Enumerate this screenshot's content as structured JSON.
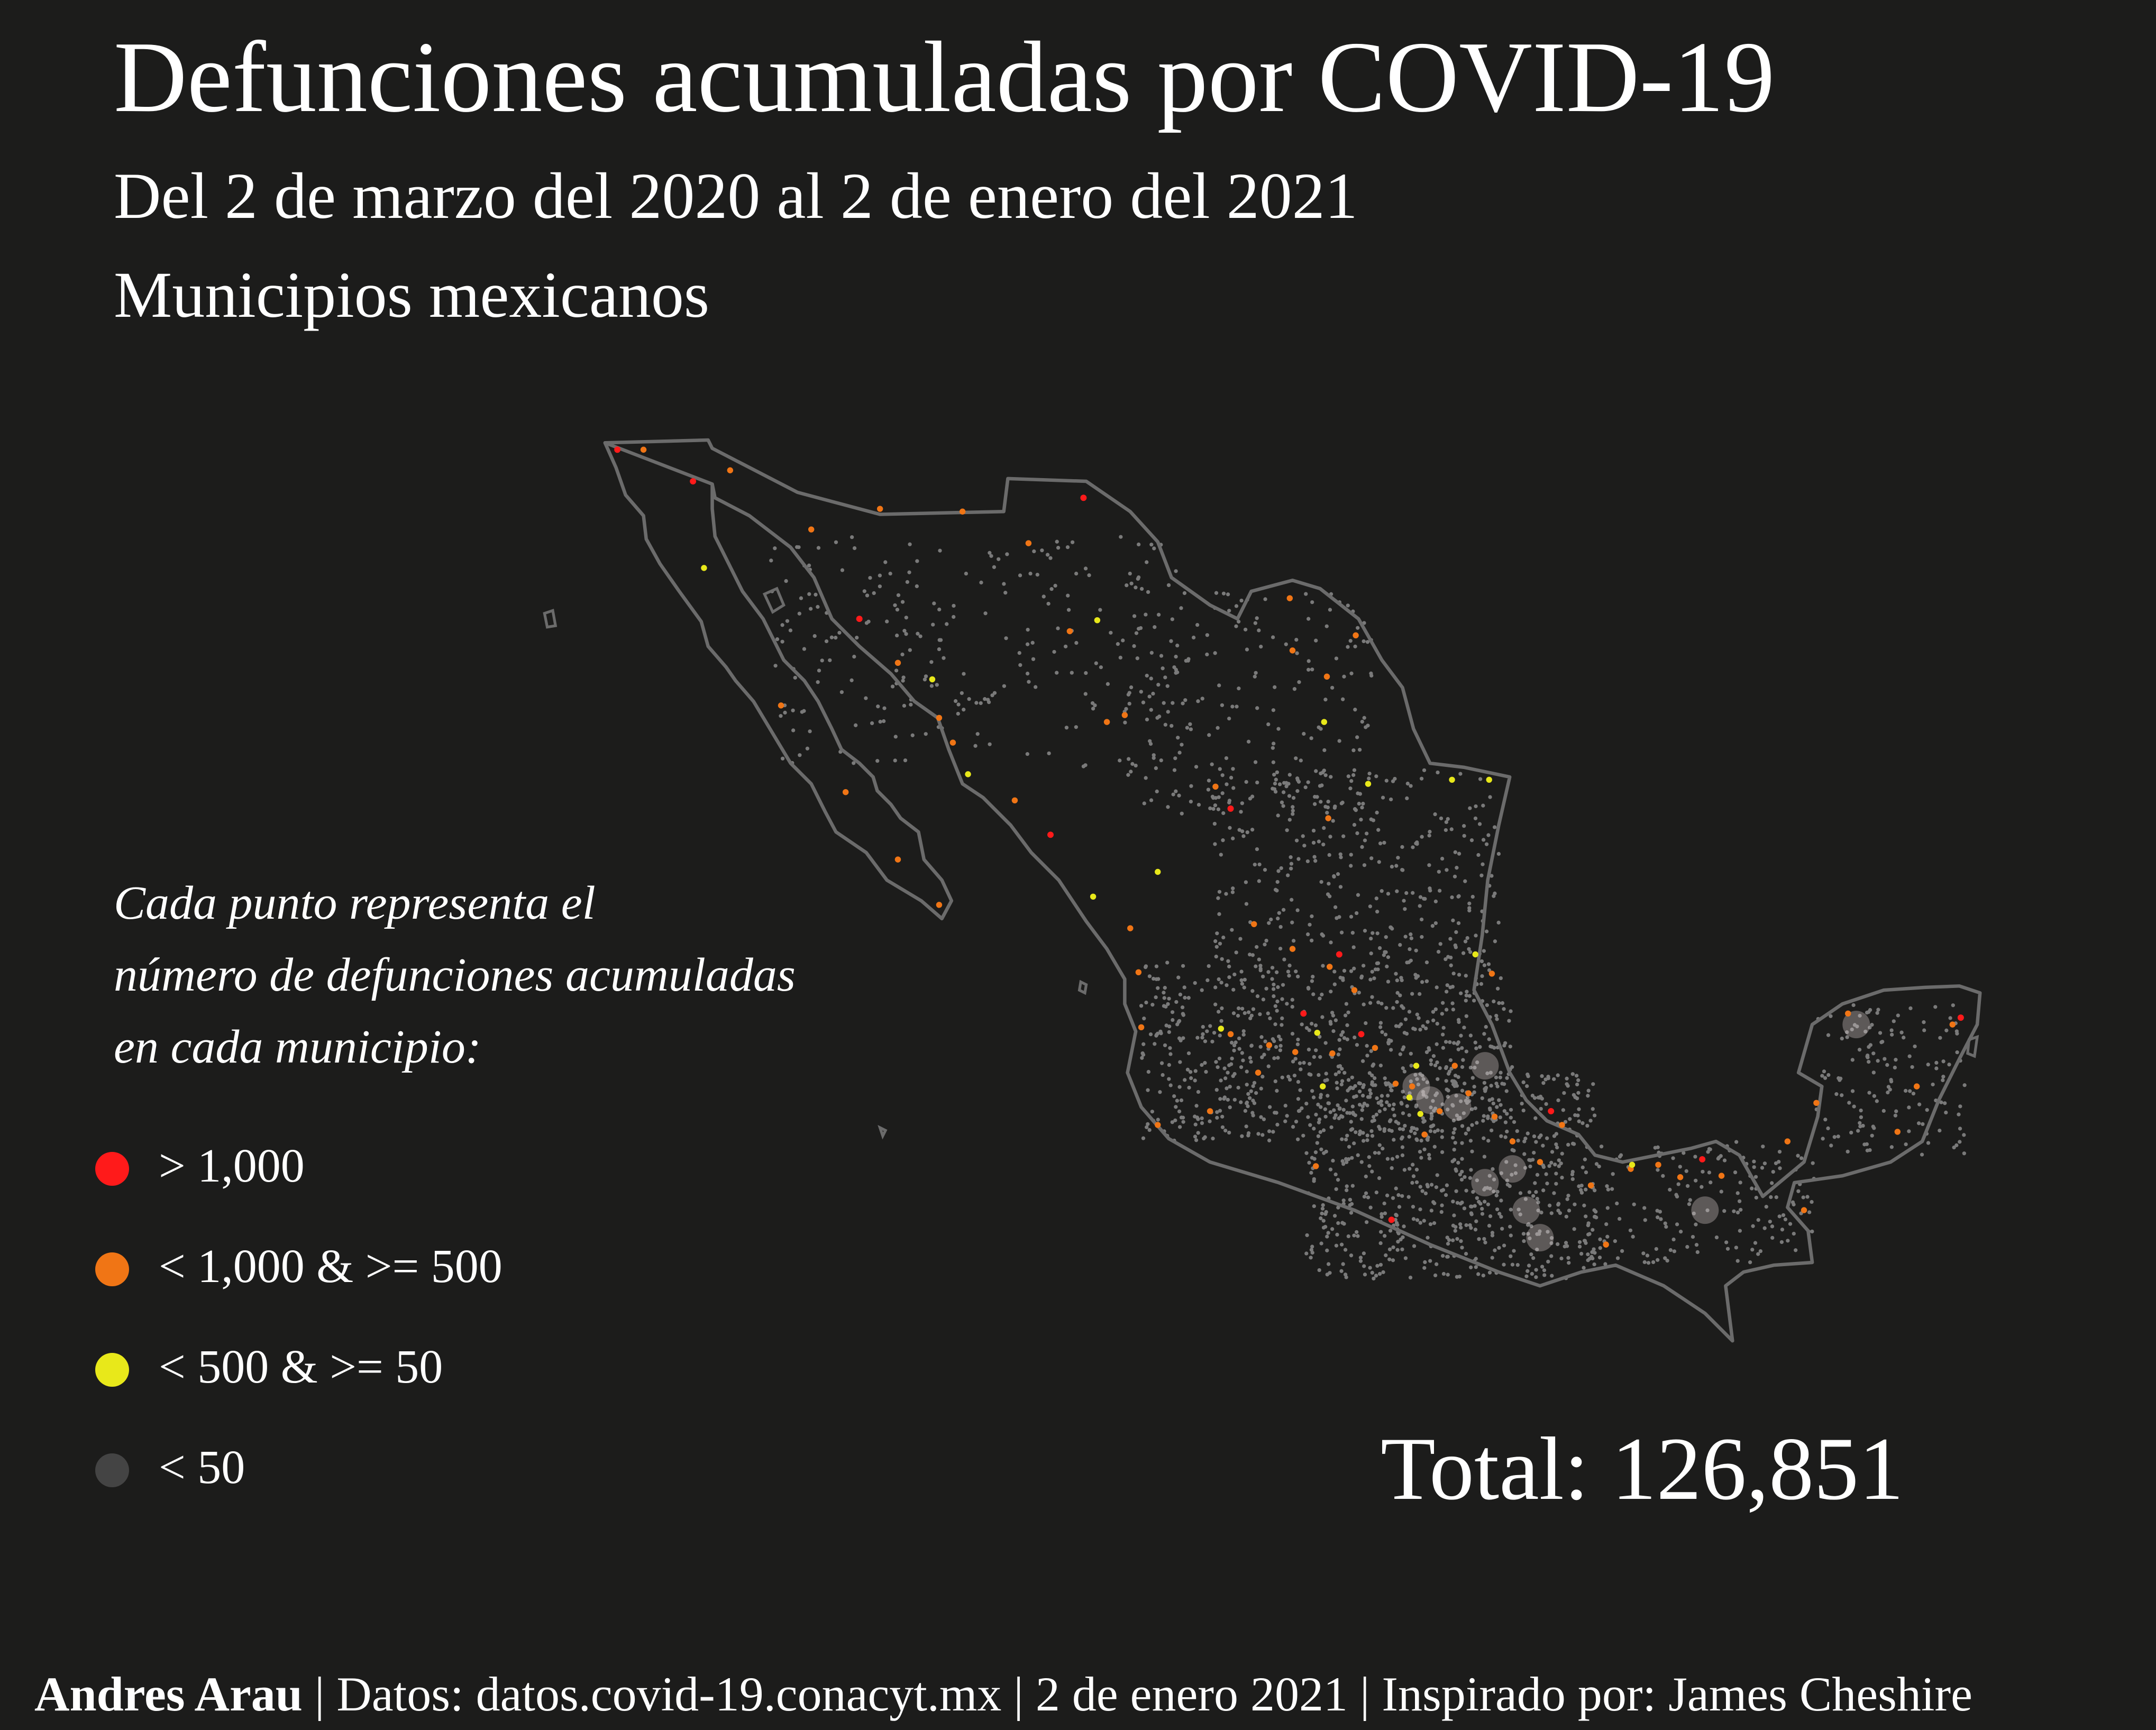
{
  "title": "Defunciones acumuladas por COVID-19",
  "subtitle": "Del 2 de marzo del 2020 al 2 de enero del 2021",
  "subtitle2": "Municipios mexicanos",
  "legend": {
    "intro": [
      "Cada punto representa el",
      "número de defunciones acumuladas",
      "en cada municipio:"
    ],
    "items": [
      {
        "label": "> 1,000",
        "color": "#ff1a1a"
      },
      {
        "label": "< 1,000 & >= 500",
        "color": "#f07515"
      },
      {
        "label": "< 500 & >= 50",
        "color": "#e8e81a"
      },
      {
        "label": "< 50",
        "color": "#444444"
      }
    ]
  },
  "total": "Total: 126,851",
  "footer": {
    "author": "Andres Arau",
    "rest": " | Datos: datos.covid-19.conacyt.mx | 2 de enero 2021 | Inspirado por: James Cheshire"
  },
  "colors": {
    "background": "#1c1c1b",
    "outline": "#6b6b6b",
    "gray_dot": "#7a7a7a"
  }
}
